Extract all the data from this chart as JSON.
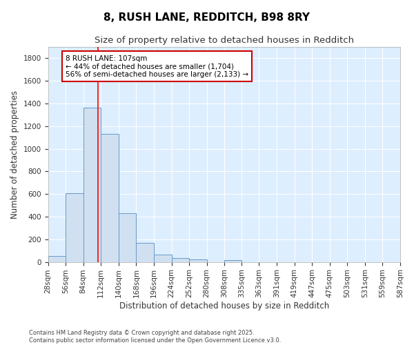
{
  "title1": "8, RUSH LANE, REDDITCH, B98 8RY",
  "title2": "Size of property relative to detached houses in Redditch",
  "xlabel": "Distribution of detached houses by size in Redditch",
  "ylabel": "Number of detached properties",
  "footnote1": "Contains HM Land Registry data © Crown copyright and database right 2025.",
  "footnote2": "Contains public sector information licensed under the Open Government Licence v3.0.",
  "bin_edges": [
    28,
    56,
    84,
    112,
    140,
    168,
    196,
    224,
    252,
    280,
    308,
    335,
    363,
    391,
    419,
    447,
    475,
    503,
    531,
    559,
    587
  ],
  "bar_heights": [
    55,
    605,
    1365,
    1130,
    430,
    170,
    65,
    35,
    20,
    0,
    15,
    0,
    0,
    0,
    0,
    0,
    0,
    0,
    0,
    0
  ],
  "bar_color": "#d0e0f0",
  "bar_edge_color": "#6699cc",
  "red_line_x": 107,
  "ylim": [
    0,
    1900
  ],
  "yticks": [
    0,
    200,
    400,
    600,
    800,
    1000,
    1200,
    1400,
    1600,
    1800
  ],
  "annotation_line1": "8 RUSH LANE: 107sqm",
  "annotation_line2": "← 44% of detached houses are smaller (1,704)",
  "annotation_line3": "56% of semi-detached houses are larger (2,133) →",
  "annotation_box_color": "#ffffff",
  "annotation_box_edge_color": "#cc0000",
  "fig_bg_color": "#ffffff",
  "plot_bg_color": "#ddeeff"
}
